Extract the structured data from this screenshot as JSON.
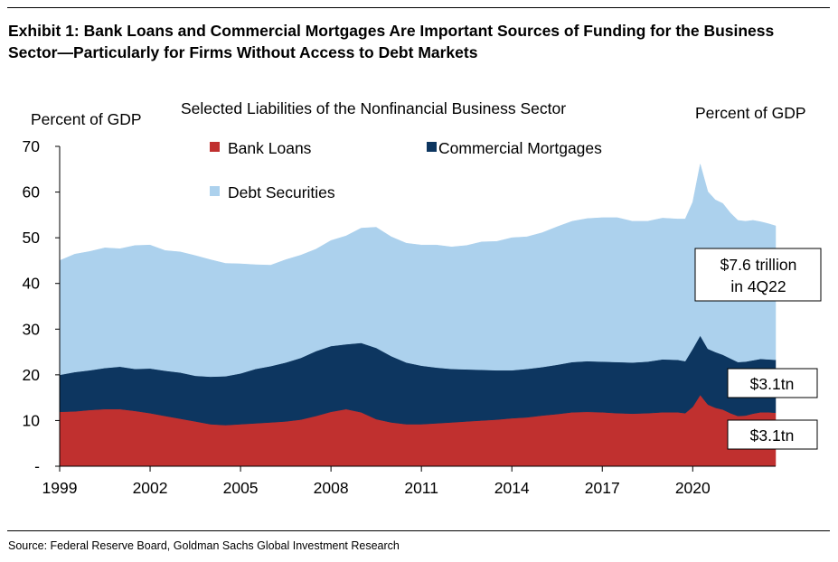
{
  "header": {
    "title_line1": "Exhibit 1: Bank Loans and Commercial Mortgages Are Important Sources of Funding for the Business",
    "title_line2": "Sector—Particularly for Firms Without Access to Debt Markets"
  },
  "footer": {
    "source": "Source: Federal Reserve Board, Goldman Sachs Global Investment Research"
  },
  "chart_data": {
    "type": "area",
    "stacked": true,
    "title": "Selected Liabilities of the Nonfinancial Business Sector",
    "ylabel_left": "Percent of GDP",
    "ylabel_right": "Percent of GDP",
    "ylim": [
      0,
      70
    ],
    "yticks": [
      0,
      10,
      20,
      30,
      40,
      50,
      60,
      70
    ],
    "ytick_labels": [
      "-",
      "10",
      "20",
      "30",
      "40",
      "50",
      "60",
      "70"
    ],
    "xlim": [
      1999.0,
      2022.75
    ],
    "xticks": [
      1999,
      2002,
      2005,
      2008,
      2011,
      2014,
      2017,
      2020
    ],
    "xtick_labels": [
      "1999",
      "2002",
      "2005",
      "2008",
      "2011",
      "2014",
      "2017",
      "2020"
    ],
    "x": [
      1999.0,
      1999.5,
      2000.0,
      2000.5,
      2001.0,
      2001.5,
      2002.0,
      2002.5,
      2003.0,
      2003.5,
      2004.0,
      2004.5,
      2005.0,
      2005.5,
      2006.0,
      2006.5,
      2007.0,
      2007.5,
      2008.0,
      2008.5,
      2009.0,
      2009.5,
      2010.0,
      2010.5,
      2011.0,
      2011.5,
      2012.0,
      2012.5,
      2013.0,
      2013.5,
      2014.0,
      2014.5,
      2015.0,
      2015.5,
      2016.0,
      2016.5,
      2017.0,
      2017.5,
      2018.0,
      2018.5,
      2019.0,
      2019.5,
      2019.75,
      2020.0,
      2020.25,
      2020.5,
      2020.75,
      2021.0,
      2021.25,
      2021.5,
      2021.75,
      2022.0,
      2022.25,
      2022.5,
      2022.75
    ],
    "series": [
      {
        "name": "Bank Loans",
        "color": "#c0302f",
        "values": [
          11.9,
          12.0,
          12.3,
          12.5,
          12.5,
          12.1,
          11.6,
          11.0,
          10.4,
          9.8,
          9.2,
          9.0,
          9.2,
          9.4,
          9.6,
          9.8,
          10.2,
          11.0,
          11.9,
          12.5,
          11.8,
          10.3,
          9.6,
          9.2,
          9.2,
          9.4,
          9.6,
          9.8,
          10.0,
          10.2,
          10.5,
          10.7,
          11.1,
          11.4,
          11.8,
          11.9,
          11.8,
          11.6,
          11.5,
          11.6,
          11.8,
          11.8,
          11.6,
          13.0,
          15.6,
          13.5,
          12.8,
          12.4,
          11.6,
          11.0,
          11.1,
          11.5,
          11.8,
          11.8,
          11.7
        ]
      },
      {
        "name": "Commercial Mortgages",
        "color": "#0d3660",
        "values": [
          8.1,
          8.6,
          8.7,
          9.0,
          9.3,
          9.2,
          9.8,
          9.9,
          10.1,
          10.0,
          10.4,
          10.7,
          11.1,
          11.9,
          12.3,
          12.9,
          13.5,
          14.2,
          14.4,
          14.2,
          15.2,
          15.6,
          14.5,
          13.5,
          12.8,
          12.2,
          11.7,
          11.4,
          11.1,
          10.8,
          10.5,
          10.6,
          10.6,
          10.8,
          11.0,
          11.1,
          11.1,
          11.2,
          11.2,
          11.3,
          11.6,
          11.5,
          11.4,
          12.7,
          13.0,
          12.2,
          12.2,
          12.0,
          12.0,
          11.8,
          11.8,
          11.7,
          11.7,
          11.6,
          11.6
        ]
      },
      {
        "name": "Debt Securities",
        "color": "#acd1ed",
        "values": [
          25.0,
          25.8,
          26.0,
          26.3,
          25.8,
          27.0,
          27.0,
          26.3,
          26.4,
          26.3,
          25.6,
          24.7,
          24.0,
          22.8,
          22.1,
          22.5,
          22.5,
          22.3,
          23.1,
          23.7,
          25.1,
          26.4,
          26.1,
          26.1,
          26.4,
          26.8,
          26.7,
          27.1,
          28.0,
          28.2,
          29.0,
          28.9,
          29.4,
          30.2,
          30.8,
          31.2,
          31.5,
          31.6,
          30.9,
          30.7,
          30.9,
          30.8,
          31.1,
          32.1,
          37.5,
          34.4,
          33.3,
          33.1,
          31.8,
          31.0,
          30.7,
          30.6,
          30.0,
          29.7,
          29.3
        ]
      }
    ],
    "annotations": [
      {
        "text_line1": "$7.6 trillion",
        "text_line2": "in 4Q22",
        "target": "Debt Securities"
      },
      {
        "text": "$3.1tn",
        "target": "Commercial Mortgages"
      },
      {
        "text": "$3.1tn",
        "target": "Bank Loans"
      }
    ]
  }
}
